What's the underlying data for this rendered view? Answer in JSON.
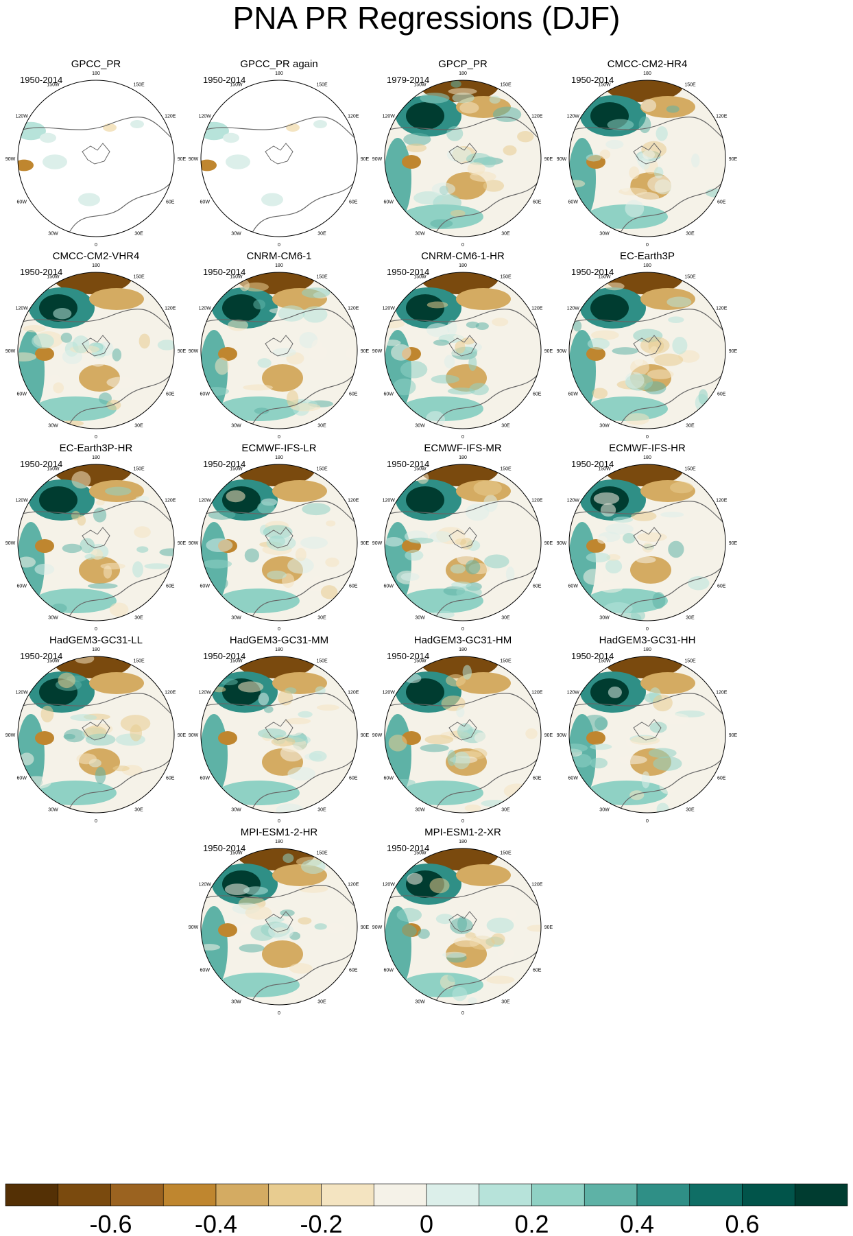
{
  "figure": {
    "title": "PNA PR Regressions (DJF)"
  },
  "chart_data": {
    "type": "heatmap",
    "projection": "north polar stereographic",
    "lon_labels": [
      "180",
      "150E",
      "120E",
      "90E",
      "60E",
      "30E",
      "0",
      "30W",
      "60W",
      "90W",
      "120W",
      "150W"
    ],
    "panels": [
      {
        "name": "GPCC_PR",
        "period": "1950-2014",
        "coverage": "land-only"
      },
      {
        "name": "GPCC_PR again",
        "period": "1950-2014",
        "coverage": "land-only"
      },
      {
        "name": "GPCP_PR",
        "period": "1979-2014",
        "coverage": "global"
      },
      {
        "name": "CMCC-CM2-HR4",
        "period": "1950-2014",
        "coverage": "global"
      },
      {
        "name": "CMCC-CM2-VHR4",
        "period": "1950-2014",
        "coverage": "global"
      },
      {
        "name": "CNRM-CM6-1",
        "period": "1950-2014",
        "coverage": "global"
      },
      {
        "name": "CNRM-CM6-1-HR",
        "period": "1950-2014",
        "coverage": "global"
      },
      {
        "name": "EC-Earth3P",
        "period": "1950-2014",
        "coverage": "global"
      },
      {
        "name": "EC-Earth3P-HR",
        "period": "1950-2014",
        "coverage": "global"
      },
      {
        "name": "ECMWF-IFS-LR",
        "period": "1950-2014",
        "coverage": "global"
      },
      {
        "name": "ECMWF-IFS-MR",
        "period": "1950-2014",
        "coverage": "global"
      },
      {
        "name": "ECMWF-IFS-HR",
        "period": "1950-2014",
        "coverage": "global"
      },
      {
        "name": "HadGEM3-GC31-LL",
        "period": "1950-2014",
        "coverage": "global"
      },
      {
        "name": "HadGEM3-GC31-MM",
        "period": "1950-2014",
        "coverage": "global"
      },
      {
        "name": "HadGEM3-GC31-HM",
        "period": "1950-2014",
        "coverage": "global"
      },
      {
        "name": "HadGEM3-GC31-HH",
        "period": "1950-2014",
        "coverage": "global"
      },
      {
        "name": "MPI-ESM1-2-HR",
        "period": "1950-2014",
        "coverage": "global"
      },
      {
        "name": "MPI-ESM1-2-XR",
        "period": "1950-2014",
        "coverage": "global"
      }
    ],
    "colorbar": {
      "levels": [
        -0.7,
        -0.6,
        -0.5,
        -0.4,
        -0.3,
        -0.2,
        -0.1,
        0,
        0.1,
        0.2,
        0.3,
        0.4,
        0.5,
        0.6,
        0.7
      ],
      "tick_labels": [
        "-0.6",
        "-0.4",
        "-0.2",
        "0",
        "0.2",
        "0.4",
        "0.6"
      ],
      "colors": [
        "#543005",
        "#7a4a0e",
        "#9b6320",
        "#bf862f",
        "#d4ab62",
        "#e8cc90",
        "#f4e4c1",
        "#f5f2e8",
        "#dcefea",
        "#b7e3da",
        "#8fd1c4",
        "#5eb2a6",
        "#2f8f86",
        "#0f6e65",
        "#01544a",
        "#003c30"
      ]
    }
  }
}
